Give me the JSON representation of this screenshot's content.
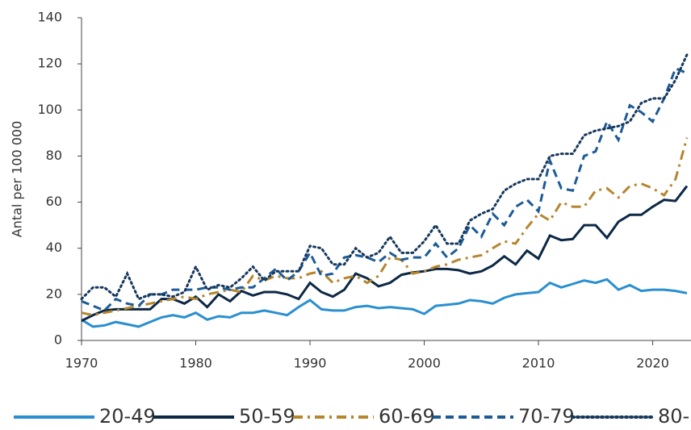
{
  "chart_data": {
    "type": "line",
    "y_label": "Antal per 100 000",
    "x": [
      1970,
      1971,
      1972,
      1973,
      1974,
      1975,
      1976,
      1977,
      1978,
      1979,
      1980,
      1981,
      1982,
      1983,
      1984,
      1985,
      1986,
      1987,
      1988,
      1989,
      1990,
      1991,
      1992,
      1993,
      1994,
      1995,
      1996,
      1997,
      1998,
      1999,
      2000,
      2001,
      2002,
      2003,
      2004,
      2005,
      2006,
      2007,
      2008,
      2009,
      2010,
      2011,
      2012,
      2013,
      2014,
      2015,
      2016,
      2017,
      2018,
      2019,
      2020,
      2021,
      2022,
      2023
    ],
    "xlim": [
      1970,
      2023
    ],
    "xticks": [
      1970,
      1980,
      1990,
      2000,
      2010,
      2020
    ],
    "ylim": [
      0,
      140
    ],
    "yticks": [
      0,
      20,
      40,
      60,
      80,
      100,
      120,
      140
    ],
    "series": [
      {
        "name": "20-49",
        "color": "#2a8fd0",
        "dash": "solid",
        "values": [
          9,
          6,
          6.5,
          8,
          7,
          6,
          8,
          10,
          11,
          10,
          12,
          9,
          10.5,
          10,
          12,
          12,
          13,
          12,
          11,
          14.5,
          17.5,
          13.5,
          13,
          13,
          14.5,
          15,
          14,
          14.5,
          14,
          13.5,
          11.5,
          15,
          15.5,
          16,
          17.5,
          17,
          16,
          18.5,
          20,
          20.5,
          21,
          25,
          23,
          24.5,
          26,
          25,
          26.5,
          22,
          24,
          21.5,
          22,
          22,
          21.5,
          20.5
        ]
      },
      {
        "name": "50-59",
        "color": "#0c2844",
        "dash": "solid",
        "values": [
          8.5,
          11,
          13,
          13.5,
          13.5,
          13.5,
          13.5,
          18,
          18,
          16,
          19,
          14.5,
          20,
          17,
          21.5,
          19.5,
          21,
          21,
          20,
          18,
          25,
          21,
          19,
          22,
          29,
          27,
          23.5,
          25,
          28.5,
          29.5,
          30,
          31,
          31,
          30.5,
          29,
          30,
          32.5,
          36.5,
          33,
          39,
          35.5,
          45.5,
          43.5,
          44,
          50,
          50,
          44.5,
          51.5,
          54.5,
          54.5,
          58,
          61,
          60.5,
          67
        ]
      },
      {
        "name": "60-69",
        "color": "#b5862f",
        "dash": "dashdot",
        "values": [
          12,
          11,
          12,
          13,
          14,
          15,
          16,
          17,
          18,
          19,
          18,
          20,
          21,
          22,
          21,
          28,
          26,
          28,
          27,
          27,
          29,
          30,
          25,
          27,
          28,
          25,
          28,
          36,
          35,
          29,
          30,
          32,
          33,
          35,
          36,
          37,
          40,
          43,
          42,
          49,
          55,
          52,
          60,
          58,
          58,
          65,
          66,
          62,
          67,
          68,
          66,
          63,
          70,
          88
        ]
      },
      {
        "name": "70-79",
        "color": "#1d5b96",
        "dash": "dashed",
        "values": [
          17,
          15,
          13,
          18,
          16,
          15,
          20,
          20,
          22,
          22,
          22,
          23,
          23,
          22,
          23,
          23,
          27,
          31,
          26,
          30,
          38,
          28,
          29,
          36,
          37,
          36,
          34,
          38,
          35,
          36,
          36,
          42,
          36,
          40,
          50,
          45,
          55,
          50,
          58,
          61,
          56,
          78,
          66,
          65,
          80,
          82,
          95,
          87,
          102,
          99,
          95,
          105,
          118,
          116
        ]
      },
      {
        "name": "80-",
        "color": "#17385c",
        "dash": "dotted",
        "values": [
          18,
          23,
          23,
          19,
          29,
          18,
          20,
          20,
          19,
          21,
          32,
          22,
          24,
          23,
          27,
          32,
          26,
          30,
          30,
          30,
          41,
          40,
          33,
          33,
          40,
          36,
          38,
          45,
          38,
          38,
          43,
          50,
          42,
          42,
          52,
          55,
          57,
          65,
          68,
          70,
          70,
          80,
          81,
          81,
          89,
          91,
          92,
          93,
          95,
          103,
          105,
          105,
          113,
          124
        ]
      }
    ]
  }
}
